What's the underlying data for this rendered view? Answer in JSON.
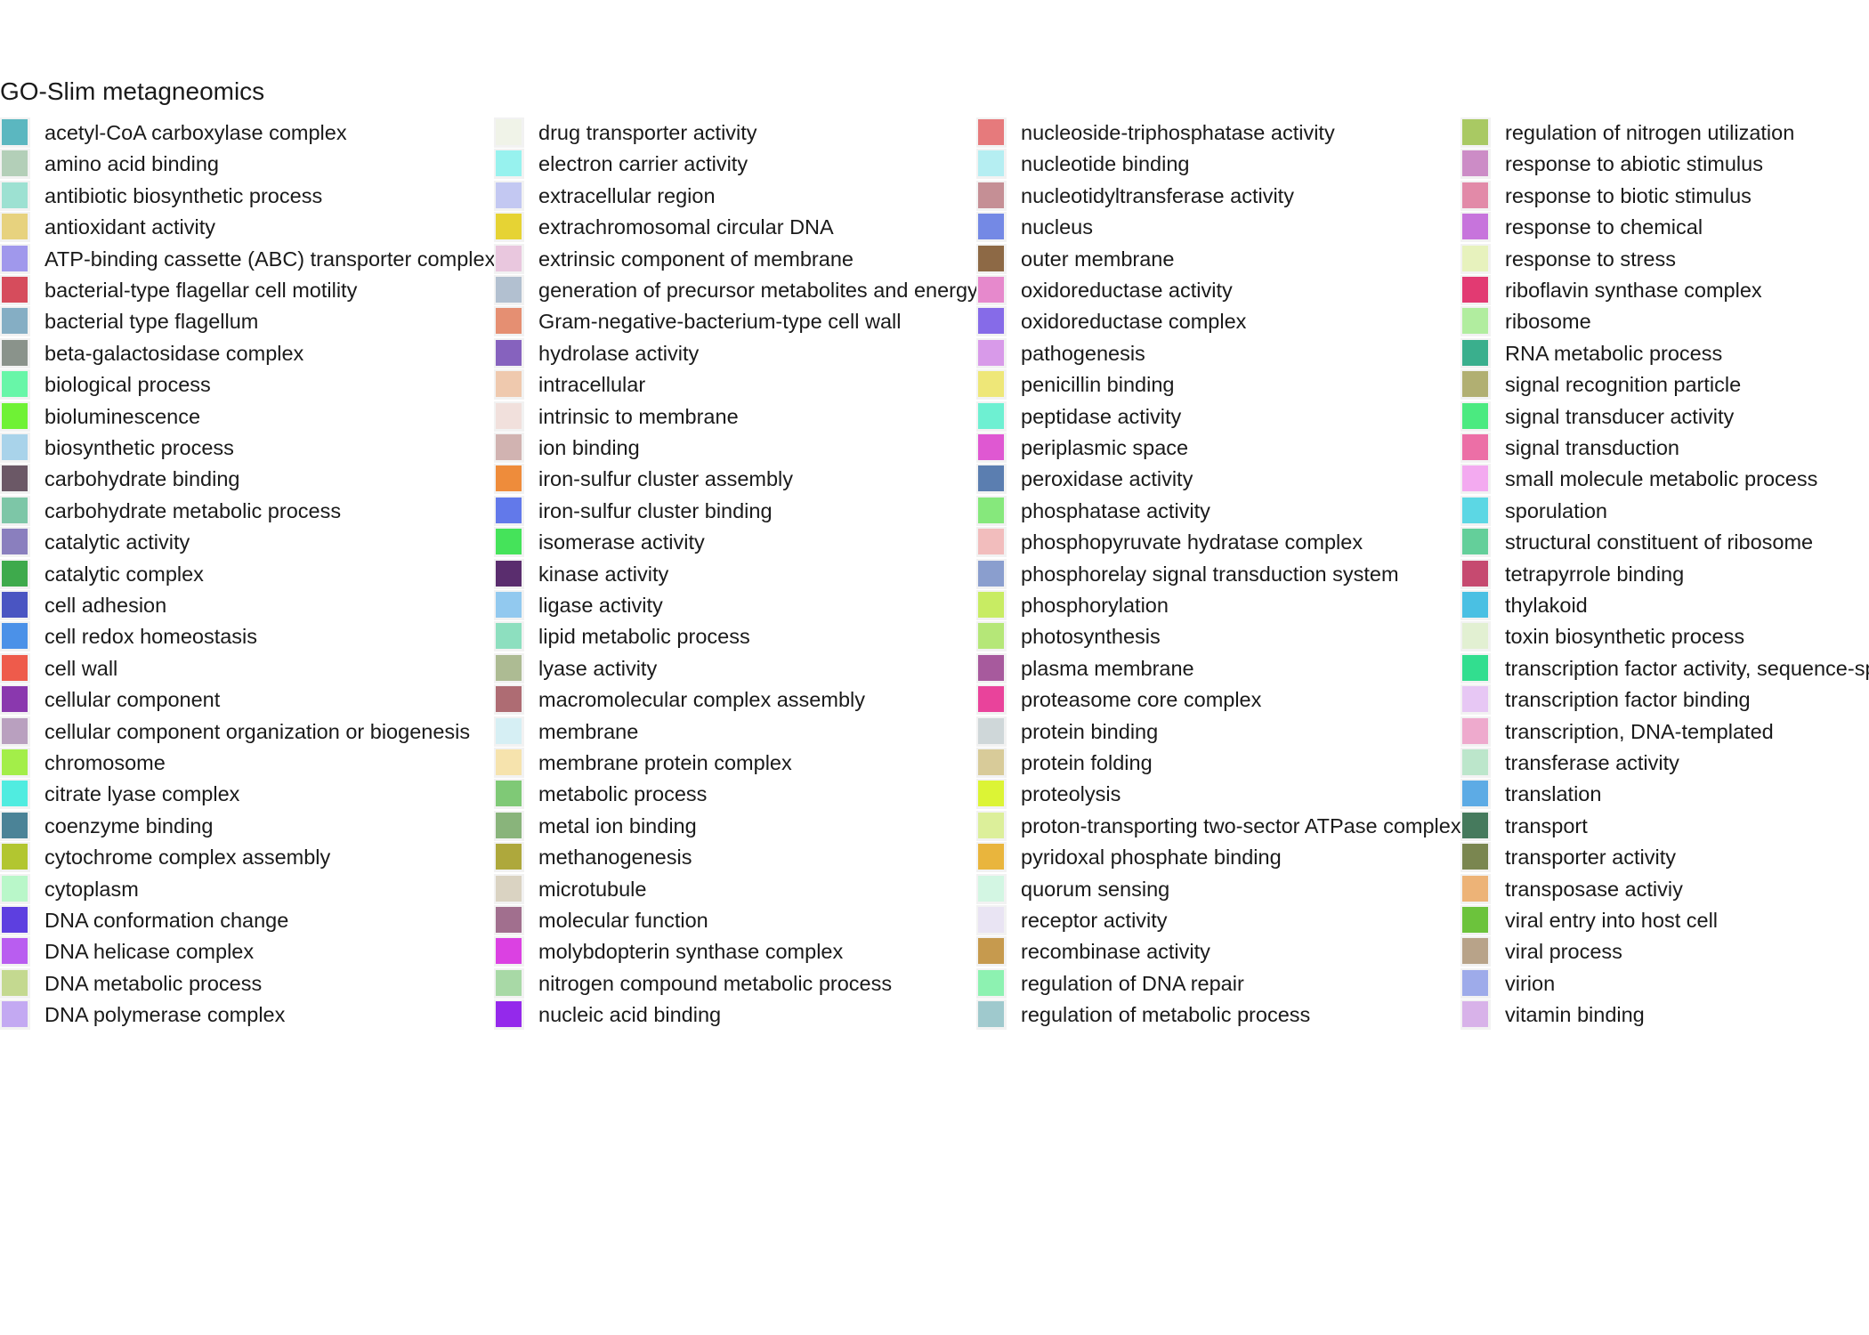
{
  "chart_data": {
    "type": "legend",
    "title": "GO-Slim metagneomics",
    "entries": [
      {
        "label": "acetyl-CoA carboxylase complex",
        "color": "#5bb7c0"
      },
      {
        "label": "amino acid binding",
        "color": "#b3cfb8"
      },
      {
        "label": "antibiotic biosynthetic process",
        "color": "#9de1d2"
      },
      {
        "label": "antioxidant activity",
        "color": "#e7d27e"
      },
      {
        "label": "ATP-binding cassette (ABC) transporter complex",
        "color": "#a098ec"
      },
      {
        "label": "bacterial-type flagellar cell motility",
        "color": "#d64c5c"
      },
      {
        "label": "bacterial type flagellum",
        "color": "#85aec4"
      },
      {
        "label": "beta-galactosidase complex",
        "color": "#8a938b"
      },
      {
        "label": "biological process",
        "color": "#68f6a8"
      },
      {
        "label": "bioluminescence",
        "color": "#6ff235"
      },
      {
        "label": "biosynthetic process",
        "color": "#a9d3ea"
      },
      {
        "label": "carbohydrate binding",
        "color": "#6b5866"
      },
      {
        "label": "carbohydrate metabolic process",
        "color": "#7dc6a7"
      },
      {
        "label": "catalytic activity",
        "color": "#8a7fbe"
      },
      {
        "label": "catalytic complex",
        "color": "#3eaa4c"
      },
      {
        "label": "cell adhesion",
        "color": "#4a55c2"
      },
      {
        "label": "cell redox homeostasis",
        "color": "#4b91e8"
      },
      {
        "label": "cell wall",
        "color": "#ee5b4b"
      },
      {
        "label": "cellular component",
        "color": "#8a38ae"
      },
      {
        "label": "cellular component organization or biogenesis",
        "color": "#b9a0bf"
      },
      {
        "label": "chromosome",
        "color": "#a3ee49"
      },
      {
        "label": "citrate lyase complex",
        "color": "#50ece0"
      },
      {
        "label": "coenzyme binding",
        "color": "#4b8397"
      },
      {
        "label": "cytochrome complex assembly",
        "color": "#b2c630"
      },
      {
        "label": "cytoplasm",
        "color": "#b9f7c9"
      },
      {
        "label": "DNA conformation change",
        "color": "#5d3fe0"
      },
      {
        "label": "DNA helicase complex",
        "color": "#b95df0"
      },
      {
        "label": "DNA metabolic process",
        "color": "#c4d990"
      },
      {
        "label": "DNA polymerase complex",
        "color": "#c3a9f2"
      },
      {
        "label": "drug transporter activity",
        "color": "#f0f3e8"
      },
      {
        "label": "electron carrier activity",
        "color": "#97f2ee"
      },
      {
        "label": "extracellular region",
        "color": "#c3c8f2"
      },
      {
        "label": "extrachromosomal circular DNA",
        "color": "#e6d334"
      },
      {
        "label": "extrinsic component of membrane",
        "color": "#e9c7de"
      },
      {
        "label": "generation of precursor metabolites and energy",
        "color": "#b2c0d0"
      },
      {
        "label": "Gram-negative-bacterium-type cell wall",
        "color": "#e58f72"
      },
      {
        "label": "hydrolase activity",
        "color": "#8662be"
      },
      {
        "label": "intracellular",
        "color": "#efc9ae"
      },
      {
        "label": "intrinsic to membrane",
        "color": "#f1e0dc"
      },
      {
        "label": "ion binding",
        "color": "#d1b3b1"
      },
      {
        "label": "iron-sulfur cluster assembly",
        "color": "#ee8c3b"
      },
      {
        "label": "iron-sulfur cluster binding",
        "color": "#6279ea"
      },
      {
        "label": "isomerase activity",
        "color": "#45e35a"
      },
      {
        "label": "kinase activity",
        "color": "#5a2d6e"
      },
      {
        "label": "ligase activity",
        "color": "#92c9ef"
      },
      {
        "label": "lipid metabolic process",
        "color": "#8ddfbf"
      },
      {
        "label": "lyase activity",
        "color": "#adbb93"
      },
      {
        "label": "macromolecular complex assembly",
        "color": "#ae6c73"
      },
      {
        "label": "membrane",
        "color": "#d6eff4"
      },
      {
        "label": "membrane protein complex",
        "color": "#f6e3ad"
      },
      {
        "label": "metabolic process",
        "color": "#7fc976"
      },
      {
        "label": "metal ion binding",
        "color": "#89b47b"
      },
      {
        "label": "methanogenesis",
        "color": "#aea83c"
      },
      {
        "label": "microtubule",
        "color": "#dad3c2"
      },
      {
        "label": "molecular function",
        "color": "#a16f8e"
      },
      {
        "label": "molybdopterin synthase complex",
        "color": "#db41e2"
      },
      {
        "label": "nitrogen compound metabolic process",
        "color": "#a8d9a6"
      },
      {
        "label": "nucleic acid binding",
        "color": "#9429eb"
      },
      {
        "label": "nucleoside-triphosphatase activity",
        "color": "#e67a7c"
      },
      {
        "label": "nucleotide binding",
        "color": "#b5eef2"
      },
      {
        "label": "nucleotidyltransferase activity",
        "color": "#c58f95"
      },
      {
        "label": "nucleus",
        "color": "#7489e5"
      },
      {
        "label": "outer membrane",
        "color": "#8d6945"
      },
      {
        "label": "oxidoreductase activity",
        "color": "#e689cc"
      },
      {
        "label": "oxidoreductase complex",
        "color": "#866be8"
      },
      {
        "label": "pathogenesis",
        "color": "#d89ae9"
      },
      {
        "label": "penicillin binding",
        "color": "#eee778"
      },
      {
        "label": "peptidase activity",
        "color": "#6ef0d2"
      },
      {
        "label": "periplasmic space",
        "color": "#df58d2"
      },
      {
        "label": "peroxidase activity",
        "color": "#5b7eb0"
      },
      {
        "label": "phosphatase activity",
        "color": "#86e87c"
      },
      {
        "label": "phosphopyruvate hydratase complex",
        "color": "#f2bdbd"
      },
      {
        "label": "phosphorelay signal transduction system",
        "color": "#8a9ece"
      },
      {
        "label": "phosphorylation",
        "color": "#c8ec63"
      },
      {
        "label": "photosynthesis",
        "color": "#b5e778"
      },
      {
        "label": "plasma membrane",
        "color": "#a75a9d"
      },
      {
        "label": "proteasome core complex",
        "color": "#e9439b"
      },
      {
        "label": "protein binding",
        "color": "#cfd7d9"
      },
      {
        "label": "protein folding",
        "color": "#d8cb99"
      },
      {
        "label": "proteolysis",
        "color": "#dcf435"
      },
      {
        "label": "proton-transporting two-sector ATPase complex",
        "color": "#dcef9a"
      },
      {
        "label": "pyridoxal phosphate binding",
        "color": "#e9b53d"
      },
      {
        "label": "quorum sensing",
        "color": "#d3f6e3"
      },
      {
        "label": "receptor activity",
        "color": "#e9e4f3"
      },
      {
        "label": "recombinase activity",
        "color": "#c69a4e"
      },
      {
        "label": "regulation of DNA repair",
        "color": "#8df2b1"
      },
      {
        "label": "regulation of metabolic process",
        "color": "#9fc9cd"
      },
      {
        "label": "regulation of nitrogen utilization",
        "color": "#a9c963"
      },
      {
        "label": "response to abiotic stimulus",
        "color": "#cc8cc6"
      },
      {
        "label": "response to biotic stimulus",
        "color": "#e28aa8"
      },
      {
        "label": "response to chemical",
        "color": "#c774dc"
      },
      {
        "label": "response to stress",
        "color": "#e7f2bd"
      },
      {
        "label": "riboflavin synthase complex",
        "color": "#e23a72"
      },
      {
        "label": "ribosome",
        "color": "#b1ed9f"
      },
      {
        "label": "RNA metabolic process",
        "color": "#3aaf8d"
      },
      {
        "label": "signal recognition particle",
        "color": "#b1af72"
      },
      {
        "label": "signal transducer activity",
        "color": "#4bea80"
      },
      {
        "label": "signal transduction",
        "color": "#ec6fa6"
      },
      {
        "label": "small molecule metabolic process",
        "color": "#f3aaf0"
      },
      {
        "label": "sporulation",
        "color": "#5cd7e4"
      },
      {
        "label": "structural constituent of ribosome",
        "color": "#64cf9a"
      },
      {
        "label": "tetrapyrrole binding",
        "color": "#c64a70"
      },
      {
        "label": "thylakoid",
        "color": "#4ac0e3"
      },
      {
        "label": "toxin biosynthetic process",
        "color": "#e2f0d2"
      },
      {
        "label": "transcription factor activity, sequence-spe",
        "color": "#32de8f"
      },
      {
        "label": "transcription factor binding",
        "color": "#e7c7f4"
      },
      {
        "label": "transcription, DNA-templated",
        "color": "#eeaacd"
      },
      {
        "label": "transferase activity",
        "color": "#bce6cb"
      },
      {
        "label": "translation",
        "color": "#5dabe5"
      },
      {
        "label": "transport",
        "color": "#467a5d"
      },
      {
        "label": "transporter activity",
        "color": "#7a8650"
      },
      {
        "label": "transposase activiy",
        "color": "#edb377"
      },
      {
        "label": "viral entry into host cell",
        "color": "#6cc33c"
      },
      {
        "label": "viral process",
        "color": "#b8a389"
      },
      {
        "label": "virion",
        "color": "#9eabea"
      },
      {
        "label": "vitamin binding",
        "color": "#d8b2e9"
      }
    ]
  }
}
